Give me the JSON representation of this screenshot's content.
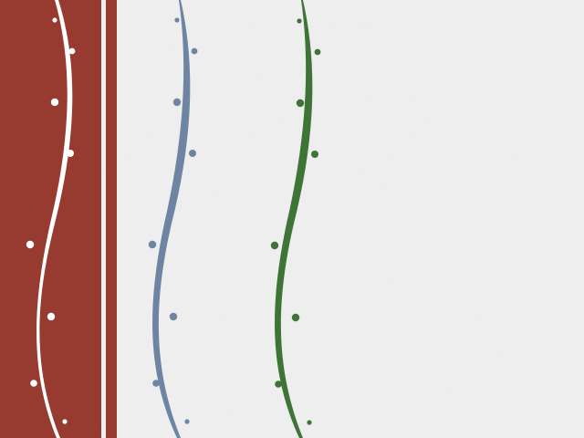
{
  "colors": {
    "background": "#efefef",
    "red_panel": "#973a30",
    "white_accent": "#ffffff",
    "blue_accent": "#6e84a3",
    "green_accent": "#3f7437"
  },
  "decorations": [
    {
      "name": "red-panel-wave",
      "color_key": "white_accent"
    },
    {
      "name": "blue-wave",
      "color_key": "blue_accent"
    },
    {
      "name": "green-wave",
      "color_key": "green_accent"
    }
  ]
}
